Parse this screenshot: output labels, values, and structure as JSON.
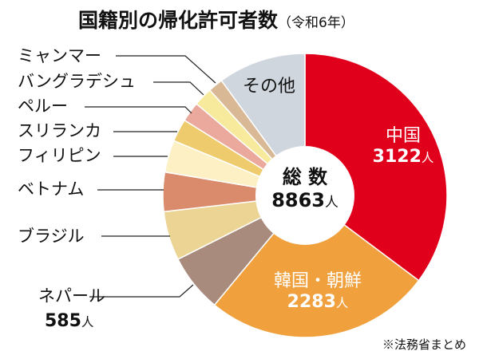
{
  "chart_data": {
    "type": "pie",
    "title": "国籍別の帰化許可者数",
    "subtitle": "（令和6年）",
    "center_label": "総 数",
    "total": 8863,
    "unit": "人",
    "source": "※法務省まとめ",
    "slices": [
      {
        "name": "中国",
        "value": 3122,
        "label_value": "3122",
        "color": "#e0001b"
      },
      {
        "name": "韓国・朝鮮",
        "value": 2283,
        "label_value": "2283",
        "color": "#f0a13e"
      },
      {
        "name": "ネパール",
        "value": 585,
        "label_value": "585",
        "color": "#a88b7d"
      },
      {
        "name": "ブラジル",
        "value": 495,
        "color": "#ecd495"
      },
      {
        "name": "ベトナム",
        "value": 396,
        "color": "#d98b6c"
      },
      {
        "name": "フィリピン",
        "value": 325,
        "color": "#fcf0c4"
      },
      {
        "name": "スリランカ",
        "value": 229,
        "color": "#eecb6c"
      },
      {
        "name": "ペルー",
        "value": 202,
        "color": "#eba89d"
      },
      {
        "name": "バングラデシュ",
        "value": 190,
        "color": "#f8ea9c"
      },
      {
        "name": "ミャンマー",
        "value": 150,
        "color": "#d9b995"
      },
      {
        "name": "その他",
        "value": 886,
        "color": "#cfd6de"
      }
    ]
  }
}
